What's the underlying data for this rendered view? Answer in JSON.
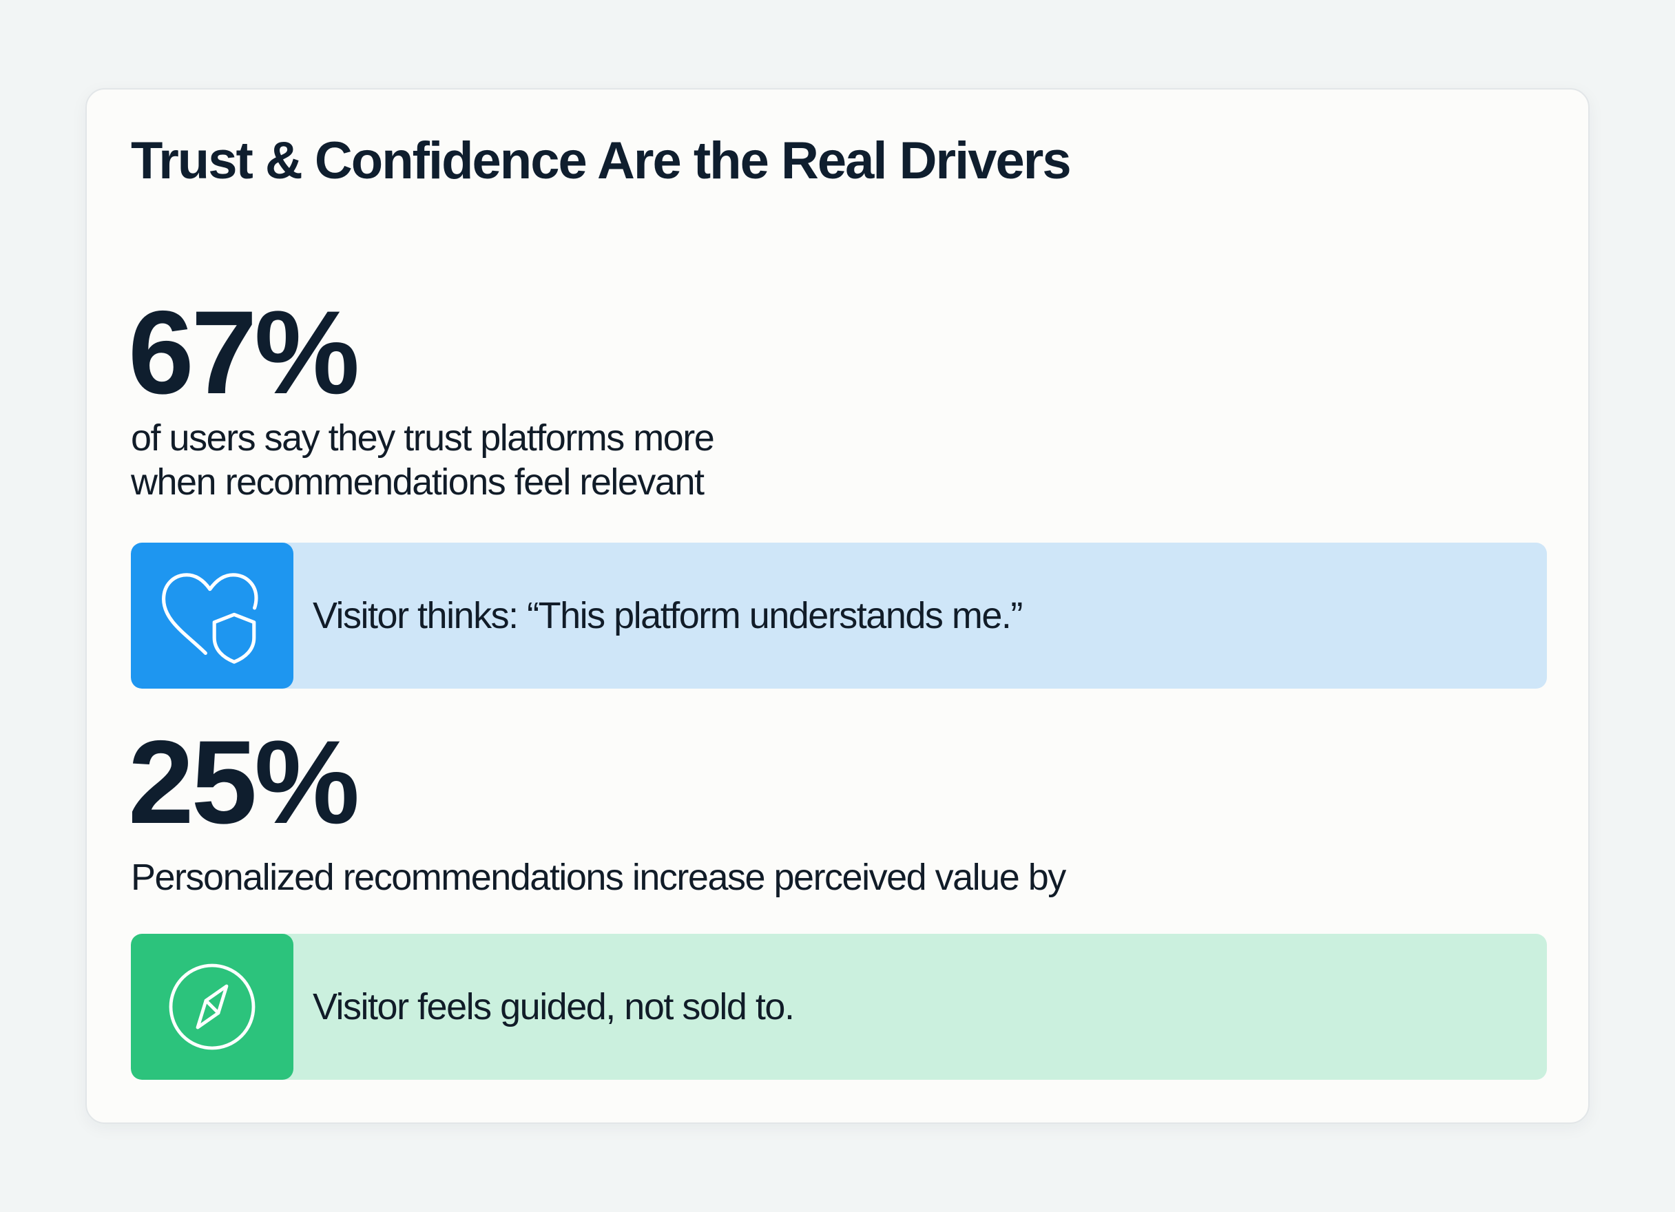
{
  "title": "Trust & Confidence Are the Real Drivers",
  "stats": [
    {
      "value": "67%",
      "description_lines": [
        "of users say they trust platforms more",
        "when recommendations feel relevant"
      ],
      "callout": {
        "text": "Visitor thinks: “This platform understands me.”",
        "icon": "heart-shield-icon",
        "accent_color": "#1e96f0",
        "background_color": "#cfe6f8"
      }
    },
    {
      "value": "25%",
      "description": "Personalized recommendations increase perceived value by",
      "callout": {
        "text": "Visitor feels guided, not sold to.",
        "icon": "compass-icon",
        "accent_color": "#2cc37c",
        "background_color": "#cbf0de"
      }
    }
  ]
}
